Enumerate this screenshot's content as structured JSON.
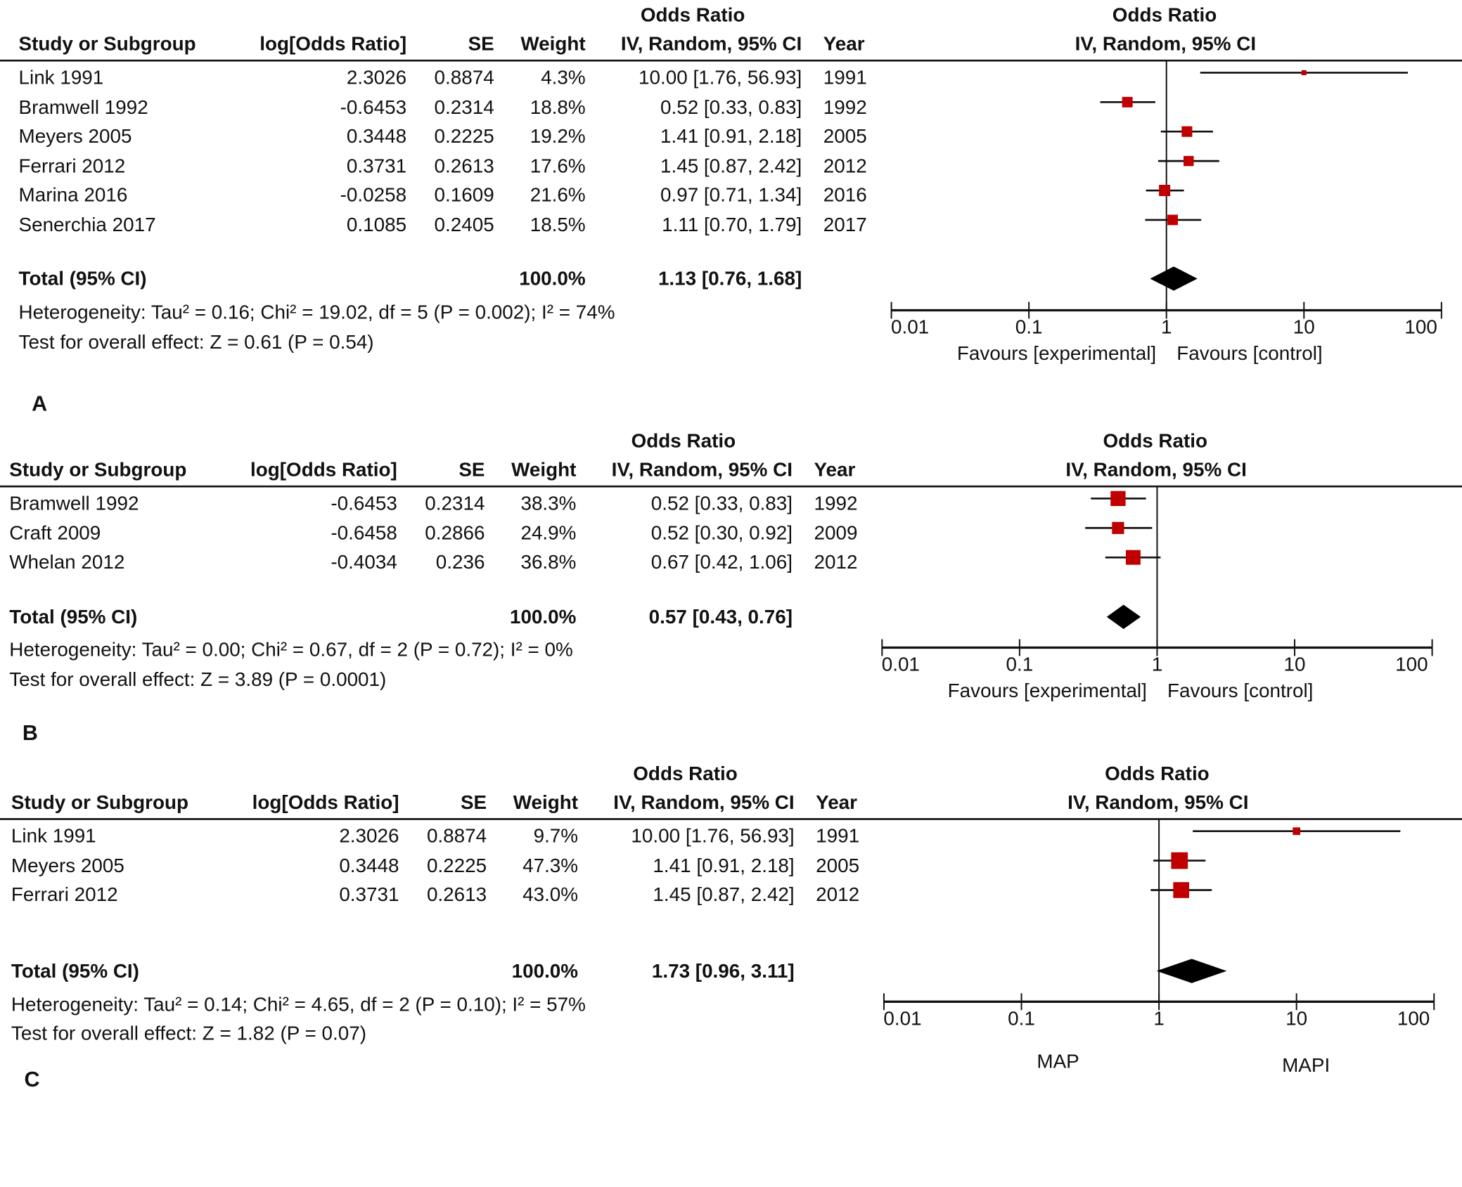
{
  "panels": [
    {
      "label": "A",
      "header_group": "Odds Ratio",
      "columns": {
        "study": "Study or Subgroup",
        "logor": "log[Odds Ratio]",
        "se": "SE",
        "weight": "Weight",
        "ci": "IV, Random, 95% CI",
        "year": "Year"
      },
      "plot_header": {
        "line1": "Odds Ratio",
        "line2": "IV, Random, 95% CI"
      },
      "rows": [
        {
          "study": "Link 1991",
          "logor": "2.3026",
          "se": "0.8874",
          "weight": "4.3%",
          "ci": "10.00 [1.76, 56.93]",
          "year": "1991"
        },
        {
          "study": "Bramwell 1992",
          "logor": "-0.6453",
          "se": "0.2314",
          "weight": "18.8%",
          "ci": "0.52 [0.33, 0.83]",
          "year": "1992"
        },
        {
          "study": "Meyers 2005",
          "logor": "0.3448",
          "se": "0.2225",
          "weight": "19.2%",
          "ci": "1.41 [0.91, 2.18]",
          "year": "2005"
        },
        {
          "study": "Ferrari 2012",
          "logor": "0.3731",
          "se": "0.2613",
          "weight": "17.6%",
          "ci": "1.45 [0.87, 2.42]",
          "year": "2012"
        },
        {
          "study": "Marina 2016",
          "logor": "-0.0258",
          "se": "0.1609",
          "weight": "21.6%",
          "ci": "0.97 [0.71, 1.34]",
          "year": "2016"
        },
        {
          "study": "Senerchia 2017",
          "logor": "0.1085",
          "se": "0.2405",
          "weight": "18.5%",
          "ci": "1.11 [0.70, 1.79]",
          "year": "2017"
        }
      ],
      "total": {
        "label": "Total (95% CI)",
        "weight": "100.0%",
        "ci": "1.13 [0.76, 1.68]"
      },
      "heterogeneity": "Heterogeneity: Tau² = 0.16; Chi² = 19.02, df = 5 (P = 0.002); I² = 74%",
      "overall_effect": "Test for overall effect: Z = 0.61 (P = 0.54)",
      "axis_ticks": [
        "0.01",
        "0.1",
        "1",
        "10",
        "100"
      ],
      "favours_left": "Favours [experimental]",
      "favours_right": "Favours [control]"
    },
    {
      "label": "B",
      "header_group": "Odds Ratio",
      "columns": {
        "study": "Study or Subgroup",
        "logor": "log[Odds Ratio]",
        "se": "SE",
        "weight": "Weight",
        "ci": "IV, Random, 95% CI",
        "year": "Year"
      },
      "plot_header": {
        "line1": "Odds Ratio",
        "line2": "IV, Random, 95% CI"
      },
      "rows": [
        {
          "study": "Bramwell 1992",
          "logor": "-0.6453",
          "se": "0.2314",
          "weight": "38.3%",
          "ci": "0.52 [0.33, 0.83]",
          "year": "1992"
        },
        {
          "study": "Craft 2009",
          "logor": "-0.6458",
          "se": "0.2866",
          "weight": "24.9%",
          "ci": "0.52 [0.30, 0.92]",
          "year": "2009"
        },
        {
          "study": "Whelan 2012",
          "logor": "-0.4034",
          "se": "0.236",
          "weight": "36.8%",
          "ci": "0.67 [0.42, 1.06]",
          "year": "2012"
        }
      ],
      "total": {
        "label": "Total (95% CI)",
        "weight": "100.0%",
        "ci": "0.57 [0.43, 0.76]"
      },
      "heterogeneity": "Heterogeneity: Tau² = 0.00; Chi² = 0.67, df = 2 (P = 0.72); I² = 0%",
      "overall_effect": "Test for overall effect: Z = 3.89 (P = 0.0001)",
      "axis_ticks": [
        "0.01",
        "0.1",
        "1",
        "10",
        "100"
      ],
      "favours_left": "Favours [experimental]",
      "favours_right": "Favours [control]"
    },
    {
      "label": "C",
      "header_group": "Odds Ratio",
      "columns": {
        "study": "Study or Subgroup",
        "logor": "log[Odds Ratio]",
        "se": "SE",
        "weight": "Weight",
        "ci": "IV, Random, 95% CI",
        "year": "Year"
      },
      "plot_header": {
        "line1": "Odds Ratio",
        "line2": "IV, Random, 95% CI"
      },
      "rows": [
        {
          "study": "Link 1991",
          "logor": "2.3026",
          "se": "0.8874",
          "weight": "9.7%",
          "ci": "10.00 [1.76, 56.93]",
          "year": "1991"
        },
        {
          "study": "Meyers 2005",
          "logor": "0.3448",
          "se": "0.2225",
          "weight": "47.3%",
          "ci": "1.41 [0.91, 2.18]",
          "year": "2005"
        },
        {
          "study": "Ferrari 2012",
          "logor": "0.3731",
          "se": "0.2613",
          "weight": "43.0%",
          "ci": "1.45 [0.87, 2.42]",
          "year": "2012"
        }
      ],
      "total": {
        "label": "Total (95% CI)",
        "weight": "100.0%",
        "ci": "1.73 [0.96, 3.11]"
      },
      "heterogeneity": "Heterogeneity: Tau² = 0.14; Chi² = 4.65, df = 2 (P = 0.10); I² = 57%",
      "overall_effect": "Test for overall effect: Z = 1.82 (P = 0.07)",
      "axis_ticks": [
        "0.01",
        "0.1",
        "1",
        "10",
        "100"
      ],
      "favours_left": "MAP",
      "favours_right": "MAPI"
    }
  ],
  "colors": {
    "study_marker": "#c00000",
    "pooled_marker": "#000000",
    "lines": "#111111"
  },
  "chart_data": [
    {
      "type": "forest",
      "title": "A",
      "xscale": "log",
      "xlim": [
        0.01,
        100
      ],
      "null_value": 1,
      "xticks": [
        0.01,
        0.1,
        1,
        10,
        100
      ],
      "studies": [
        {
          "name": "Link 1991",
          "or": 10.0,
          "lower": 1.76,
          "upper": 56.93,
          "weight": 4.3
        },
        {
          "name": "Bramwell 1992",
          "or": 0.52,
          "lower": 0.33,
          "upper": 0.83,
          "weight": 18.8
        },
        {
          "name": "Meyers 2005",
          "or": 1.41,
          "lower": 0.91,
          "upper": 2.18,
          "weight": 19.2
        },
        {
          "name": "Ferrari 2012",
          "or": 1.45,
          "lower": 0.87,
          "upper": 2.42,
          "weight": 17.6
        },
        {
          "name": "Marina 2016",
          "or": 0.97,
          "lower": 0.71,
          "upper": 1.34,
          "weight": 21.6
        },
        {
          "name": "Senerchia 2017",
          "or": 1.11,
          "lower": 0.7,
          "upper": 1.79,
          "weight": 18.5
        }
      ],
      "pooled": {
        "or": 1.13,
        "lower": 0.76,
        "upper": 1.68
      }
    },
    {
      "type": "forest",
      "title": "B",
      "xscale": "log",
      "xlim": [
        0.01,
        100
      ],
      "null_value": 1,
      "xticks": [
        0.01,
        0.1,
        1,
        10,
        100
      ],
      "studies": [
        {
          "name": "Bramwell 1992",
          "or": 0.52,
          "lower": 0.33,
          "upper": 0.83,
          "weight": 38.3
        },
        {
          "name": "Craft 2009",
          "or": 0.52,
          "lower": 0.3,
          "upper": 0.92,
          "weight": 24.9
        },
        {
          "name": "Whelan 2012",
          "or": 0.67,
          "lower": 0.42,
          "upper": 1.06,
          "weight": 36.8
        }
      ],
      "pooled": {
        "or": 0.57,
        "lower": 0.43,
        "upper": 0.76
      }
    },
    {
      "type": "forest",
      "title": "C",
      "xscale": "log",
      "xlim": [
        0.01,
        100
      ],
      "null_value": 1,
      "xticks": [
        0.01,
        0.1,
        1,
        10,
        100
      ],
      "studies": [
        {
          "name": "Link 1991",
          "or": 10.0,
          "lower": 1.76,
          "upper": 56.93,
          "weight": 9.7
        },
        {
          "name": "Meyers 2005",
          "or": 1.41,
          "lower": 0.91,
          "upper": 2.18,
          "weight": 47.3
        },
        {
          "name": "Ferrari 2012",
          "or": 1.45,
          "lower": 0.87,
          "upper": 2.42,
          "weight": 43.0
        }
      ],
      "pooled": {
        "or": 1.73,
        "lower": 0.96,
        "upper": 3.11
      }
    }
  ]
}
